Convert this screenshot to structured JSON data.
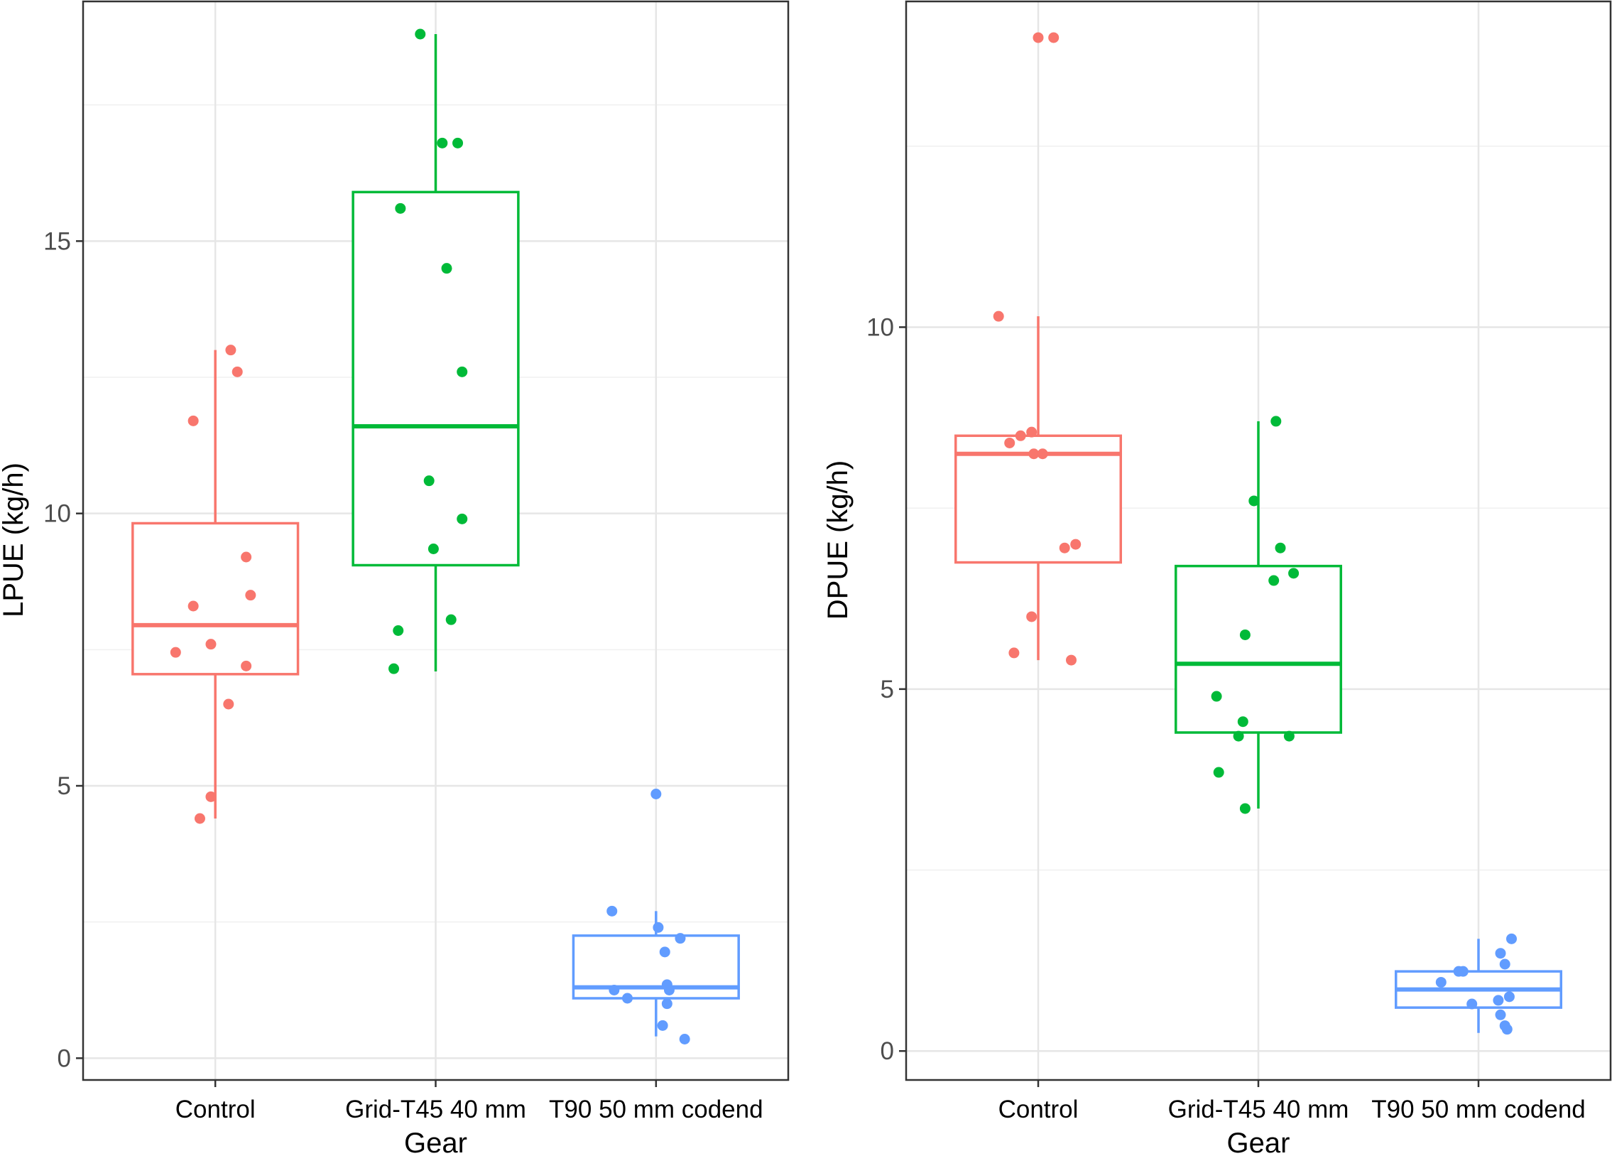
{
  "chart_data": [
    {
      "type": "box",
      "xlabel": "Gear",
      "ylabel": "LPUE (kg/h)",
      "categories": [
        "Control",
        "Grid-T45 40 mm",
        "T90 50 mm codend"
      ],
      "ylim": [
        -0.4,
        19.4
      ],
      "yticks": [
        0,
        5,
        10,
        15
      ],
      "colors": [
        "#F8766D",
        "#00BA38",
        "#619CFF"
      ],
      "boxes": [
        {
          "q1": 7.05,
          "median": 7.95,
          "q3": 9.82,
          "whisker_low": 4.4,
          "whisker_high": 13.0
        },
        {
          "q1": 9.05,
          "median": 11.6,
          "q3": 15.9,
          "whisker_low": 7.1,
          "whisker_high": 18.8
        },
        {
          "q1": 1.1,
          "median": 1.3,
          "q3": 2.25,
          "whisker_low": 0.4,
          "whisker_high": 2.7
        }
      ],
      "points": [
        [
          {
            "x": -0.1,
            "y": 11.7
          },
          {
            "x": 0.07,
            "y": 13.0
          },
          {
            "x": 0.1,
            "y": 12.6
          },
          {
            "x": 0.14,
            "y": 9.2
          },
          {
            "x": 0.16,
            "y": 8.5
          },
          {
            "x": -0.1,
            "y": 8.3
          },
          {
            "x": -0.02,
            "y": 7.6
          },
          {
            "x": -0.18,
            "y": 7.45
          },
          {
            "x": 0.14,
            "y": 7.2
          },
          {
            "x": 0.06,
            "y": 6.5
          },
          {
            "x": -0.02,
            "y": 4.8
          },
          {
            "x": -0.07,
            "y": 4.4
          }
        ],
        [
          {
            "x": -0.07,
            "y": 18.8
          },
          {
            "x": 0.03,
            "y": 16.8
          },
          {
            "x": 0.1,
            "y": 16.8
          },
          {
            "x": -0.16,
            "y": 15.6
          },
          {
            "x": 0.05,
            "y": 14.5
          },
          {
            "x": 0.12,
            "y": 12.6
          },
          {
            "x": -0.03,
            "y": 10.6
          },
          {
            "x": 0.12,
            "y": 9.9
          },
          {
            "x": -0.01,
            "y": 9.35
          },
          {
            "x": -0.17,
            "y": 7.85
          },
          {
            "x": 0.07,
            "y": 8.05
          },
          {
            "x": -0.19,
            "y": 7.15
          }
        ],
        [
          {
            "x": 0.0,
            "y": 4.85
          },
          {
            "x": -0.2,
            "y": 2.7
          },
          {
            "x": 0.01,
            "y": 2.4
          },
          {
            "x": 0.11,
            "y": 2.2
          },
          {
            "x": 0.04,
            "y": 1.95
          },
          {
            "x": 0.05,
            "y": 1.35
          },
          {
            "x": -0.19,
            "y": 1.25
          },
          {
            "x": 0.06,
            "y": 1.25
          },
          {
            "x": -0.13,
            "y": 1.1
          },
          {
            "x": 0.05,
            "y": 1.0
          },
          {
            "x": 0.03,
            "y": 0.6
          },
          {
            "x": 0.13,
            "y": 0.35
          }
        ]
      ]
    },
    {
      "type": "box",
      "xlabel": "Gear",
      "ylabel": "DPUE (kg/h)",
      "categories": [
        "Control",
        "Grid-T45 40 mm",
        "T90 50 mm codend"
      ],
      "ylim": [
        -0.4,
        14.5
      ],
      "yticks": [
        0,
        5,
        10
      ],
      "colors": [
        "#F8766D",
        "#00BA38",
        "#619CFF"
      ],
      "boxes": [
        {
          "q1": 6.75,
          "median": 8.25,
          "q3": 8.5,
          "whisker_low": 5.4,
          "whisker_high": 10.15
        },
        {
          "q1": 4.4,
          "median": 5.35,
          "q3": 6.7,
          "whisker_low": 3.35,
          "whisker_high": 8.7
        },
        {
          "q1": 0.6,
          "median": 0.85,
          "q3": 1.1,
          "whisker_low": 0.25,
          "whisker_high": 1.55
        }
      ],
      "points": [
        [
          {
            "x": 0.0,
            "y": 14.0
          },
          {
            "x": 0.07,
            "y": 14.0
          },
          {
            "x": -0.18,
            "y": 10.15
          },
          {
            "x": -0.03,
            "y": 8.55
          },
          {
            "x": -0.08,
            "y": 8.5
          },
          {
            "x": -0.13,
            "y": 8.4
          },
          {
            "x": -0.02,
            "y": 8.25
          },
          {
            "x": 0.02,
            "y": 8.25
          },
          {
            "x": 0.17,
            "y": 7.0
          },
          {
            "x": 0.12,
            "y": 6.95
          },
          {
            "x": -0.03,
            "y": 6.0
          },
          {
            "x": -0.11,
            "y": 5.5
          },
          {
            "x": 0.15,
            "y": 5.4
          }
        ],
        [
          {
            "x": 0.08,
            "y": 8.7
          },
          {
            "x": -0.02,
            "y": 7.6
          },
          {
            "x": 0.1,
            "y": 6.95
          },
          {
            "x": 0.16,
            "y": 6.6
          },
          {
            "x": 0.07,
            "y": 6.5
          },
          {
            "x": -0.06,
            "y": 5.75
          },
          {
            "x": -0.19,
            "y": 4.9
          },
          {
            "x": -0.07,
            "y": 4.55
          },
          {
            "x": -0.09,
            "y": 4.35
          },
          {
            "x": 0.14,
            "y": 4.35
          },
          {
            "x": -0.18,
            "y": 3.85
          },
          {
            "x": -0.06,
            "y": 3.35
          }
        ],
        [
          {
            "x": 0.15,
            "y": 1.55
          },
          {
            "x": 0.1,
            "y": 1.35
          },
          {
            "x": 0.12,
            "y": 1.2
          },
          {
            "x": -0.09,
            "y": 1.1
          },
          {
            "x": -0.07,
            "y": 1.1
          },
          {
            "x": -0.17,
            "y": 0.95
          },
          {
            "x": 0.14,
            "y": 0.75
          },
          {
            "x": 0.09,
            "y": 0.7
          },
          {
            "x": -0.03,
            "y": 0.65
          },
          {
            "x": 0.1,
            "y": 0.5
          },
          {
            "x": 0.12,
            "y": 0.35
          },
          {
            "x": 0.13,
            "y": 0.3
          }
        ]
      ]
    }
  ]
}
